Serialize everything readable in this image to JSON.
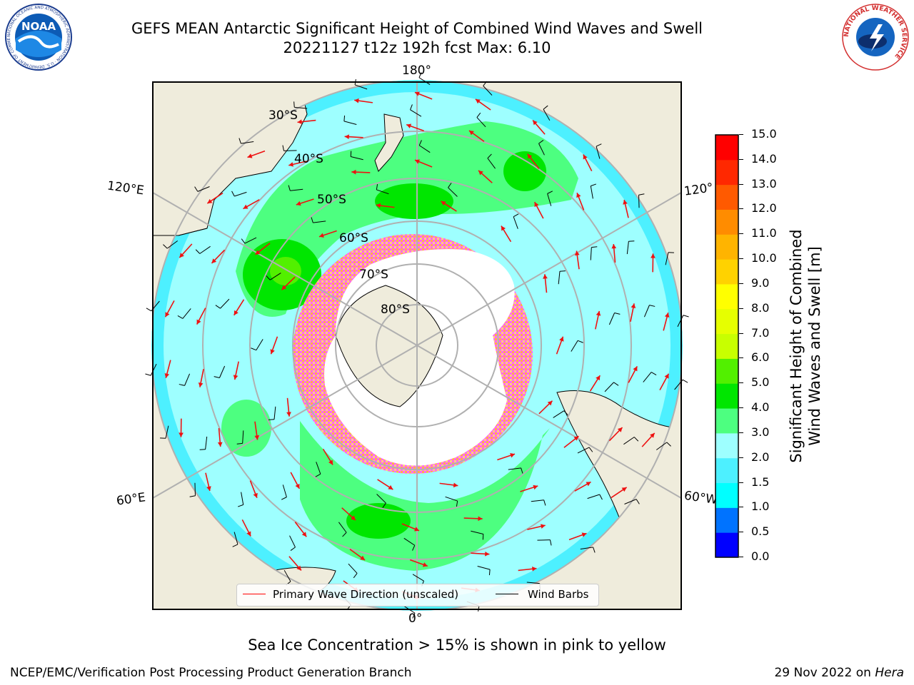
{
  "header": {
    "title_line1": "GEFS MEAN Antarctic Significant Height of Combined Wind Waves and Swell",
    "title_line2": "20221127 t12z 192h fcst   Max: 6.10"
  },
  "logos": {
    "left": {
      "name": "noaa-logo",
      "text": "NOAA",
      "ring_text": "NATIONAL OCEANIC AND ATMOSPHERIC ADMINISTRATION · U.S. DEPARTMENT OF COMMERCE"
    },
    "right": {
      "name": "nws-logo",
      "ring_text": "NATIONAL WEATHER SERVICE"
    }
  },
  "map": {
    "projection": "south-polar-stereographic",
    "longitude_labels": {
      "top": "180°",
      "bottom": "0°",
      "upper_left": "120°E",
      "lower_left": "60°E",
      "upper_right": "120°",
      "lower_right": "60°W"
    },
    "latitude_labels": [
      "30°S",
      "40°S",
      "50°S",
      "60°S",
      "70°S",
      "80°S"
    ],
    "legend": [
      {
        "label": "Primary Wave Direction (unscaled)",
        "color": "#ff0000"
      },
      {
        "label": "Wind Barbs",
        "color": "#000000"
      }
    ]
  },
  "colorbar": {
    "title_line1": "Significant Height of Combined",
    "title_line2": "Wind Waves and Swell [m]",
    "ticks": [
      "0.0",
      "0.5",
      "1.0",
      "1.5",
      "2.0",
      "3.0",
      "4.0",
      "5.0",
      "6.0",
      "7.0",
      "8.0",
      "9.0",
      "10.0",
      "11.0",
      "12.0",
      "13.0",
      "14.0",
      "15.0"
    ],
    "colors": [
      "#0000ff",
      "#0073ff",
      "#00ffff",
      "#4df0ff",
      "#9effff",
      "#4dff80",
      "#00e600",
      "#52f000",
      "#c8ff00",
      "#e6ff00",
      "#ffff00",
      "#ffd200",
      "#ffb400",
      "#ff8c00",
      "#ff5a00",
      "#ff2800",
      "#ff0000"
    ]
  },
  "chart_data": {
    "type": "heatmap",
    "variable": "Significant Height of Combined Wind Waves and Swell",
    "units": "m",
    "max_value": 6.1,
    "color_scale_range": [
      0,
      15
    ]
  },
  "footer": {
    "caption": "Sea Ice Concentration > 15% is shown in pink to yellow",
    "left": "NCEP/EMC/Verification Post Processing Product Generation Branch",
    "right_date": "29 Nov 2022 on ",
    "right_host": "Hera"
  }
}
